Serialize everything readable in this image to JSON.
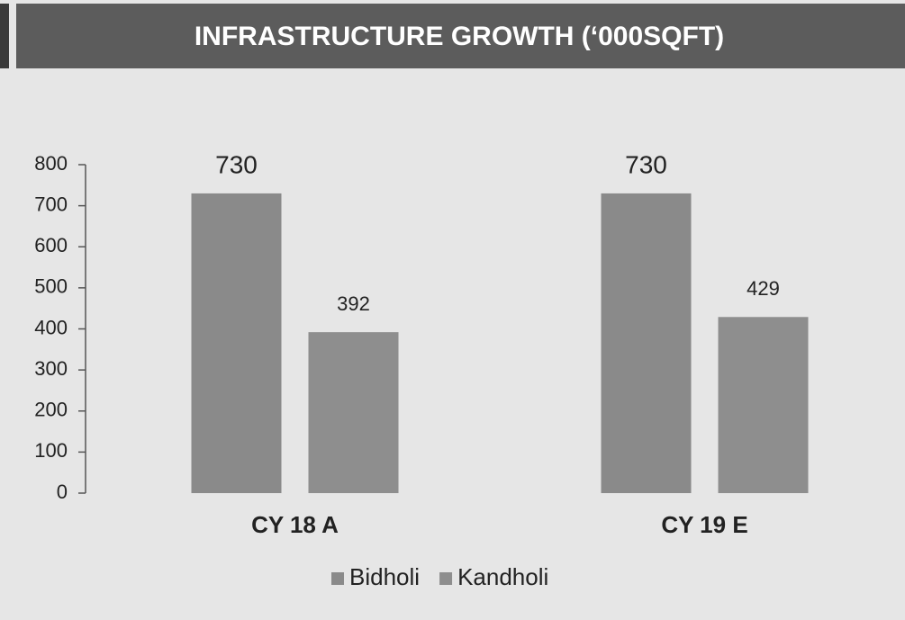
{
  "chart_data": {
    "type": "bar",
    "title": "INFRASTRUCTURE GROWTH (‘000SQFT)",
    "categories": [
      "CY 18 A",
      "CY 19 E"
    ],
    "series": [
      {
        "name": "Bidholi",
        "color": "#8a8a8a",
        "values": [
          730,
          730
        ]
      },
      {
        "name": "Kandholi",
        "color": "#8e8e8e",
        "values": [
          392,
          429
        ]
      }
    ],
    "ylim": [
      0,
      800
    ],
    "yticks": [
      0,
      100,
      200,
      300,
      400,
      500,
      600,
      700,
      800
    ],
    "grid": false,
    "legend": "bottom"
  }
}
